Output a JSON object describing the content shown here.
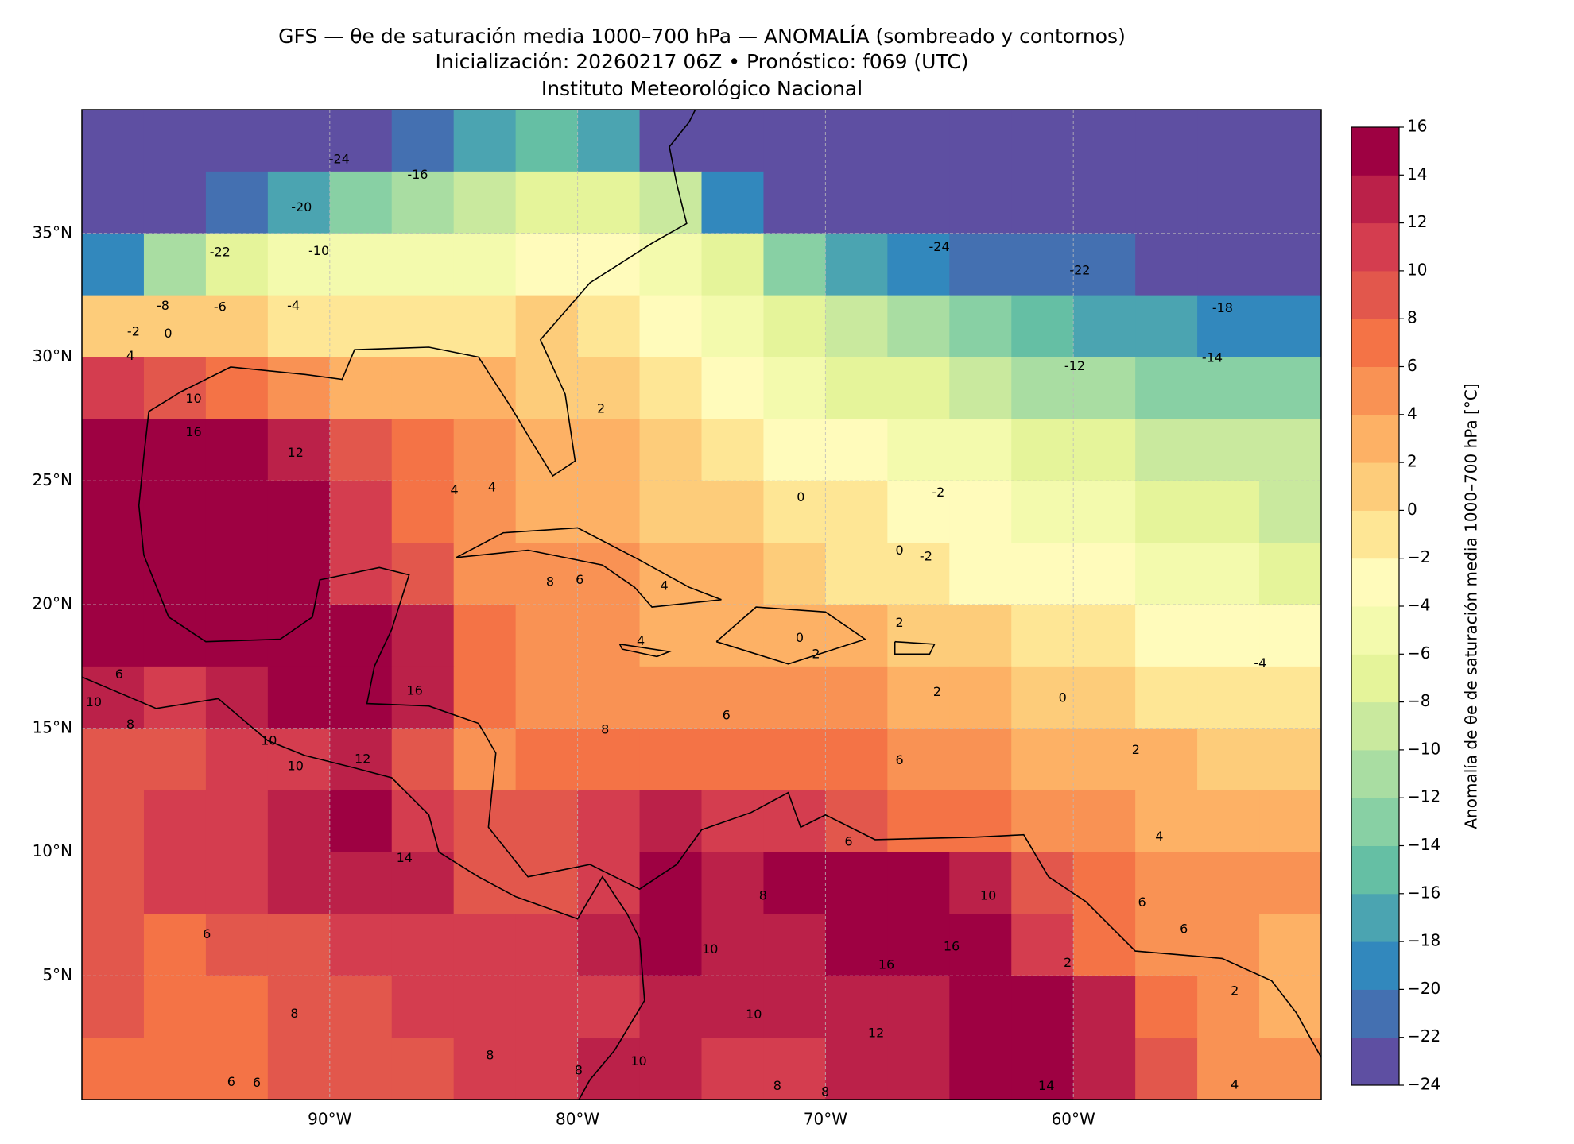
{
  "chart_data": {
    "type": "map",
    "title": "GFS — θe de saturación media 1000–700 hPa — ANOMALÍA (sombreado y contornos)",
    "subtitle": "Inicialización: 20260217 06Z   •   Pronóstico: f069 (UTC)",
    "institution": "Instituto Meteorológico Nacional",
    "xlim": [
      -100,
      -50
    ],
    "ylim": [
      0,
      40
    ],
    "xticks": [
      {
        "value": -90,
        "label": "90°W"
      },
      {
        "value": -80,
        "label": "80°W"
      },
      {
        "value": -70,
        "label": "70°W"
      },
      {
        "value": -60,
        "label": "60°W"
      }
    ],
    "yticks": [
      {
        "value": 5,
        "label": "5°N"
      },
      {
        "value": 10,
        "label": "10°N"
      },
      {
        "value": 15,
        "label": "15°N"
      },
      {
        "value": 20,
        "label": "20°N"
      },
      {
        "value": 25,
        "label": "25°N"
      },
      {
        "value": 30,
        "label": "30°N"
      },
      {
        "value": 35,
        "label": "35°N"
      }
    ],
    "grid": true,
    "colorbar_label": "Anomalía de θe de saturación media 1000–700 hPa [°C]",
    "clim": [
      -24,
      16
    ],
    "cticks": [
      {
        "value": -24,
        "label": "−24"
      },
      {
        "value": -22,
        "label": "−22"
      },
      {
        "value": -20,
        "label": "−20"
      },
      {
        "value": -18,
        "label": "−18"
      },
      {
        "value": -16,
        "label": "−16"
      },
      {
        "value": -14,
        "label": "−14"
      },
      {
        "value": -12,
        "label": "−12"
      },
      {
        "value": -10,
        "label": "−10"
      },
      {
        "value": -8,
        "label": "−8"
      },
      {
        "value": -6,
        "label": "−6"
      },
      {
        "value": -4,
        "label": "−4"
      },
      {
        "value": -2,
        "label": "−2"
      },
      0,
      2,
      4,
      6,
      8,
      10,
      12,
      14,
      16
    ],
    "colors": [
      "#5e4fa2",
      "#4470b1",
      "#3288bd",
      "#4ba4b1",
      "#65bfa4",
      "#88d0a4",
      "#a9dda2",
      "#c9e99e",
      "#e5f49a",
      "#f3faad",
      "#fffbbb",
      "#fee695",
      "#fdcc7a",
      "#fdb165",
      "#f99254",
      "#f47346",
      "#e2574c",
      "#d43d4f",
      "#bb2149",
      "#9e0142"
    ],
    "field": [
      [
        -23,
        -23,
        -23,
        -23,
        -23,
        -21,
        -17,
        -15,
        -17,
        -23,
        -23,
        -23,
        -23,
        -23,
        -23,
        -23,
        -23,
        -23,
        -23,
        -23
      ],
      [
        -23,
        -23,
        -21,
        -17,
        -14,
        -12,
        -10,
        -8,
        -7,
        -9,
        -20,
        -23,
        -23,
        -23,
        -23,
        -23,
        -23,
        -23,
        -23,
        -23
      ],
      [
        -20,
        -12,
        -8,
        -6,
        -5,
        -5,
        -5,
        -4,
        -4,
        -5,
        -8,
        -13,
        -17,
        -20,
        -21,
        -21,
        -21,
        -23,
        -23,
        -23
      ],
      [
        1,
        1,
        0,
        -1,
        -1,
        -1,
        -1,
        0,
        -2,
        -3,
        -5,
        -7,
        -10,
        -12,
        -14,
        -16,
        -17,
        -18,
        -19,
        -19
      ],
      [
        10,
        9,
        6,
        5,
        3,
        2,
        2,
        1,
        1,
        -1,
        -3,
        -5,
        -7,
        -8,
        -10,
        -11,
        -12,
        -13,
        -14,
        -14
      ],
      [
        15,
        15,
        15,
        12,
        8,
        6,
        4,
        2,
        2,
        0,
        -1,
        -3,
        -4,
        -5,
        -6,
        -7,
        -8,
        -9,
        -9,
        -10
      ],
      [
        15,
        15,
        15,
        14,
        10,
        7,
        4,
        3,
        2,
        1,
        0,
        -1,
        -2,
        -3,
        -4,
        -5,
        -6,
        -7,
        -8,
        -9
      ],
      [
        15,
        15,
        15,
        15,
        11,
        8,
        5,
        5,
        5,
        3,
        2,
        0,
        -1,
        -2,
        -3,
        -4,
        -4,
        -5,
        -6,
        -7
      ],
      [
        15,
        15,
        15,
        15,
        14,
        12,
        7,
        5,
        4,
        3,
        3,
        2,
        2,
        1,
        0,
        -1,
        -2,
        -3,
        -3,
        -4
      ],
      [
        12,
        10,
        12,
        14,
        15,
        13,
        7,
        5,
        5,
        5,
        5,
        5,
        4,
        3,
        2,
        1,
        0,
        -1,
        -2,
        -2
      ],
      [
        9,
        9,
        10,
        11,
        12,
        9,
        5,
        6,
        7,
        7,
        7,
        6,
        6,
        5,
        4,
        3,
        2,
        2,
        1,
        1
      ],
      [
        9,
        10,
        11,
        13,
        14,
        11,
        8,
        8,
        10,
        12,
        11,
        10,
        8,
        7,
        6,
        4,
        4,
        3,
        3,
        3
      ],
      [
        9,
        10,
        11,
        12,
        13,
        12,
        9,
        9,
        11,
        14,
        13,
        14,
        15,
        15,
        12,
        8,
        6,
        5,
        5,
        5
      ],
      [
        8,
        7,
        8,
        9,
        10,
        10,
        10,
        11,
        12,
        14,
        12,
        13,
        15,
        15,
        15,
        10,
        7,
        5,
        4,
        3
      ],
      [
        8,
        7,
        7,
        8,
        9,
        10,
        10,
        11,
        11,
        13,
        13,
        12,
        12,
        13,
        15,
        15,
        12,
        7,
        4,
        3
      ],
      [
        7,
        7,
        7,
        8,
        9,
        9,
        10,
        10,
        13,
        13,
        11,
        10,
        12,
        13,
        15,
        15,
        13,
        8,
        5,
        4
      ]
    ],
    "contour_labels": [
      -24,
      -16,
      -20,
      -22,
      -10,
      -8,
      -6,
      -4,
      -2,
      0,
      4,
      10,
      16,
      12,
      -24,
      -22,
      -18,
      -14,
      -12,
      2,
      4,
      4,
      0,
      -2,
      0,
      -2,
      6,
      8,
      4,
      4,
      0,
      2,
      2,
      2,
      0,
      -4,
      2,
      6,
      6,
      8,
      16,
      10,
      10,
      14,
      12,
      6,
      4,
      6,
      6,
      10,
      16,
      16,
      2,
      2,
      4,
      10,
      12,
      10,
      8,
      8,
      14,
      8,
      8,
      6,
      6,
      8,
      6,
      8,
      10,
      6,
      10,
      8
    ]
  }
}
